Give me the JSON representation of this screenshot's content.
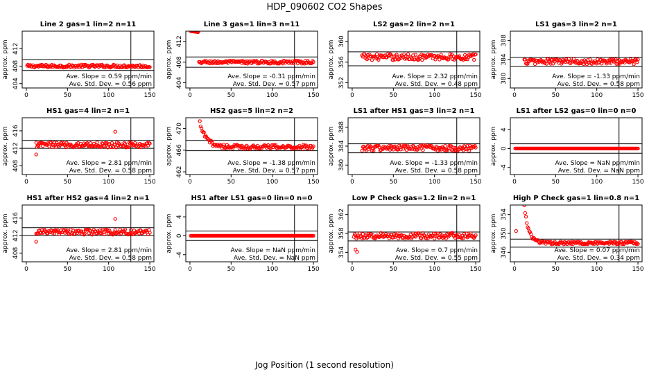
{
  "suptitle": "HDP_090602  CO2 Shapes",
  "xlabel": "Jog Position (1 second resolution)",
  "marker_color": "#ff0000",
  "chart_data": [
    {
      "type": "scatter",
      "title": "Line 2 gas=1 lin=2 n=11",
      "ylabel": "approx. ppm",
      "xlim": [
        -5,
        155
      ],
      "ylim": [
        403,
        416
      ],
      "xticks": [
        0,
        50,
        100,
        150
      ],
      "yticks": [
        404,
        408,
        412
      ],
      "hlines": [
        409.5,
        407.0
      ],
      "vline": 127,
      "slope": "Ave. Slope =  0.59  ppm/min",
      "stddev": "Ave. Std. Dev. =  0.56  ppm",
      "profile": "flat",
      "x_start": 1,
      "x_end": 150,
      "level": 408.0,
      "noise": 0.35,
      "spikes": []
    },
    {
      "type": "scatter",
      "title": "Line 3 gas=1 lin=3 n=11",
      "ylabel": "approx. ppm",
      "xlim": [
        -5,
        155
      ],
      "ylim": [
        403,
        414
      ],
      "xticks": [
        0,
        50,
        100,
        150
      ],
      "yticks": [
        404,
        408,
        412
      ],
      "hlines": [
        409.0,
        407.0
      ],
      "vline": 127,
      "slope": "Ave. Slope =  -0.31  ppm/min",
      "stddev": "Ave. Std. Dev. =  0.57  ppm",
      "profile": "step",
      "x_start": 1,
      "x_end": 150,
      "level": 408.0,
      "noise": 0.3,
      "start_level": 414.0,
      "step_x": 10,
      "spikes": []
    },
    {
      "type": "scatter",
      "title": "LS2 gas=2 lin=2 n=1",
      "ylabel": "approx. ppm",
      "xlim": [
        -5,
        155
      ],
      "ylim": [
        351,
        362
      ],
      "xticks": [
        0,
        50,
        100,
        150
      ],
      "yticks": [
        352,
        356,
        360
      ],
      "hlines": [
        358.0,
        355.3
      ],
      "vline": 127,
      "slope": "Ave. Slope =  2.32  ppm/min",
      "stddev": "Ave. Std. Dev. =  0.48  ppm",
      "profile": "flat",
      "x_start": 12,
      "x_end": 150,
      "level": 357.0,
      "noise": 0.6,
      "spikes": []
    },
    {
      "type": "scatter",
      "title": "LS1 gas=3 lin=2 n=1",
      "ylabel": "approx. ppm",
      "xlim": [
        -5,
        155
      ],
      "ylim": [
        378,
        390
      ],
      "xticks": [
        0,
        50,
        100,
        150
      ],
      "yticks": [
        380,
        384,
        388
      ],
      "hlines": [
        384.5,
        382.6
      ],
      "vline": 127,
      "slope": "Ave. Slope =  -1.33  ppm/min",
      "stddev": "Ave. Std. Dev. =  0.58  ppm",
      "profile": "flat",
      "x_start": 12,
      "x_end": 150,
      "level": 383.6,
      "noise": 0.6,
      "spikes": []
    },
    {
      "type": "scatter",
      "title": "HS1 gas=4 lin=2 n=1",
      "ylabel": "approx. ppm",
      "xlim": [
        -5,
        155
      ],
      "ylim": [
        406,
        419
      ],
      "xticks": [
        0,
        50,
        100,
        150
      ],
      "yticks": [
        408,
        412,
        416
      ],
      "hlines": [
        413.8,
        412.0
      ],
      "vline": 127,
      "slope": "Ave. Slope =  2.81  ppm/min",
      "stddev": "Ave. Std. Dev. =  0.58  ppm",
      "profile": "flat",
      "x_start": 12,
      "x_end": 150,
      "level": 412.8,
      "noise": 0.6,
      "spikes": [
        [
          12,
          410.6
        ],
        [
          108,
          415.8
        ]
      ]
    },
    {
      "type": "scatter",
      "title": "HS2 gas=5 lin=2 n=2",
      "ylabel": "approx. ppm",
      "xlim": [
        -5,
        155
      ],
      "ylim": [
        461.5,
        472
      ],
      "xticks": [
        0,
        50,
        100,
        150
      ],
      "yticks": [
        462,
        466,
        470
      ],
      "hlines": [
        467.8,
        465.9
      ],
      "vline": 127,
      "slope": "Ave. Slope =  -1.38  ppm/min",
      "stddev": "Ave. Std. Dev. =  0.57  ppm",
      "profile": "decay",
      "x_start": 12,
      "x_end": 150,
      "level": 466.6,
      "noise": 0.4,
      "start_level": 471.0,
      "tau": 8,
      "spikes": []
    },
    {
      "type": "scatter",
      "title": "LS1 after HS1 gas=3 lin=2 n=1",
      "ylabel": "approx. ppm",
      "xlim": [
        -5,
        155
      ],
      "ylim": [
        378,
        390
      ],
      "xticks": [
        0,
        50,
        100,
        150
      ],
      "yticks": [
        380,
        384,
        388
      ],
      "hlines": [
        384.5,
        382.6
      ],
      "vline": 127,
      "slope": "Ave. Slope =  -1.33  ppm/min",
      "stddev": "Ave. Std. Dev. =  0.58  ppm",
      "profile": "flat",
      "x_start": 12,
      "x_end": 150,
      "level": 383.6,
      "noise": 0.6,
      "spikes": []
    },
    {
      "type": "scatter",
      "title": "LS1 after LS2 gas=0 lin=0 n=0",
      "ylabel": "approx. ppm",
      "xlim": [
        -5,
        155
      ],
      "ylim": [
        -5.5,
        6.5
      ],
      "xticks": [
        0,
        50,
        100,
        150
      ],
      "yticks": [
        -4,
        0,
        4
      ],
      "hlines": [
        1.0,
        -1.0
      ],
      "vline": 127,
      "slope": "Ave. Slope =  NaN  ppm/min",
      "stddev": "Ave. Std. Dev. =  NaN  ppm",
      "profile": "zero",
      "x_start": 1,
      "x_end": 150,
      "level": 0,
      "noise": 0,
      "spikes": []
    },
    {
      "type": "scatter",
      "title": "HS1 after HS2 gas=4 lin=2 n=1",
      "ylabel": "approx. ppm",
      "xlim": [
        -5,
        155
      ],
      "ylim": [
        406,
        419
      ],
      "xticks": [
        0,
        50,
        100,
        150
      ],
      "yticks": [
        408,
        412,
        416
      ],
      "hlines": [
        413.8,
        412.0
      ],
      "vline": 127,
      "slope": "Ave. Slope =  2.81  ppm/min",
      "stddev": "Ave. Std. Dev. =  0.58  ppm",
      "profile": "flat",
      "x_start": 12,
      "x_end": 150,
      "level": 412.8,
      "noise": 0.6,
      "spikes": [
        [
          12,
          410.6
        ],
        [
          108,
          415.8
        ]
      ]
    },
    {
      "type": "scatter",
      "title": "HS1 after LS1 gas=0 lin=0 n=0",
      "ylabel": "approx. ppm",
      "xlim": [
        -5,
        155
      ],
      "ylim": [
        -5.5,
        6.5
      ],
      "xticks": [
        0,
        50,
        100,
        150
      ],
      "yticks": [
        -4,
        0,
        4
      ],
      "hlines": [
        1.0,
        -1.0
      ],
      "vline": 127,
      "slope": "Ave. Slope =  NaN  ppm/min",
      "stddev": "Ave. Std. Dev. =  NaN  ppm",
      "profile": "zero",
      "x_start": 1,
      "x_end": 150,
      "level": 0,
      "noise": 0,
      "spikes": []
    },
    {
      "type": "scatter",
      "title": "Low P Check gas=1.2 lin=2 n=1",
      "ylabel": "approx. ppm",
      "xlim": [
        -5,
        155
      ],
      "ylim": [
        352,
        364
      ],
      "xticks": [
        0,
        50,
        100,
        150
      ],
      "yticks": [
        354,
        358,
        362
      ],
      "hlines": [
        358.3,
        356.4
      ],
      "vline": 127,
      "slope": "Ave. Slope =  0.7  ppm/min",
      "stddev": "Ave. Std. Dev. =  0.55  ppm",
      "profile": "flat",
      "x_start": 2,
      "x_end": 150,
      "level": 357.5,
      "noise": 0.6,
      "spikes": [
        [
          4,
          354.6
        ],
        [
          6,
          354.1
        ]
      ]
    },
    {
      "type": "scatter",
      "title": "High P Check gas=1 lin=0.8 n=1",
      "ylabel": "approx. ppm",
      "xlim": [
        -5,
        155
      ],
      "ylim": [
        344,
        356
      ],
      "xticks": [
        0,
        50,
        100,
        150
      ],
      "yticks": [
        346,
        350,
        354
      ],
      "hlines": [
        348.8,
        347.1
      ],
      "vline": 127,
      "slope": "Ave. Slope =  0.07  ppm/min",
      "stddev": "Ave. Std. Dev. =  0.34  ppm",
      "profile": "decay",
      "x_start": 12,
      "x_end": 150,
      "level": 348.0,
      "noise": 0.3,
      "start_level": 356.0,
      "tau": 5,
      "spikes": [
        [
          2,
          350.5
        ]
      ]
    }
  ]
}
